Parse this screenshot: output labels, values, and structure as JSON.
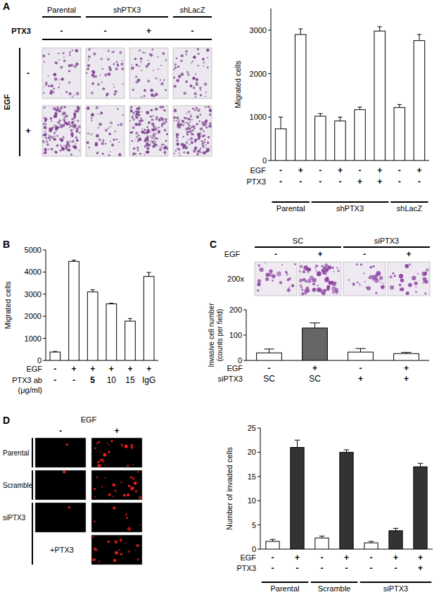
{
  "figure": {
    "panel_labels": [
      "A",
      "B",
      "C",
      "D"
    ],
    "image_A": {
      "col_headers": [
        "Parental",
        "shPTX3",
        "shLacZ"
      ],
      "treatment_label": "PTX3",
      "treatment_values": [
        "-",
        "-",
        "+",
        "-"
      ],
      "row_label": "EGF",
      "row_signs": [
        "-",
        "+"
      ]
    },
    "image_C": {
      "col_headers": [
        "SC",
        "siPTX3"
      ],
      "row_label": "EGF",
      "egf_values": [
        "-",
        "+",
        "-",
        "+"
      ],
      "magnification": "200x"
    },
    "image_D": {
      "col_label": "EGF",
      "col_signs": [
        "-",
        "+"
      ],
      "row_labels": [
        "Parental",
        "Scramble",
        "siPTX3"
      ],
      "rescue_label": "+PTX3"
    }
  },
  "chart_data": [
    {
      "type": "bar",
      "y_label": "Migrated cells",
      "categories": [
        null,
        null,
        null,
        null,
        null,
        null,
        null,
        null
      ],
      "values": [
        730,
        2900,
        1020,
        910,
        1170,
        2980,
        1220,
        2760
      ],
      "errors": [
        270,
        130,
        60,
        90,
        60,
        100,
        70,
        140
      ],
      "color": "#ffffff",
      "ylim": [
        0,
        3500
      ],
      "yticks": [
        0,
        1000,
        2000,
        3000
      ],
      "rows": [
        {
          "label": "EGF",
          "values": [
            "-",
            "+",
            "-",
            "+",
            "-",
            "+",
            "-",
            "+"
          ]
        },
        {
          "label": "PTX3",
          "values": [
            "-",
            "-",
            "-",
            "-",
            "+",
            "+",
            "-",
            "-"
          ]
        }
      ],
      "groups": [
        {
          "label": "Parental",
          "from": 0,
          "to": 1
        },
        {
          "label": "shPTX3",
          "from": 2,
          "to": 5
        },
        {
          "label": "shLacZ",
          "from": 6,
          "to": 7
        }
      ]
    },
    {
      "type": "bar",
      "y_label": "Migrated cells",
      "categories": [
        null,
        null,
        null,
        null,
        null,
        null
      ],
      "values": [
        380,
        4480,
        3100,
        2560,
        1780,
        3800
      ],
      "errors": [
        30,
        60,
        100,
        30,
        120,
        180
      ],
      "color": "#ffffff",
      "ylim": [
        0,
        5000
      ],
      "yticks": [
        0,
        1000,
        2000,
        3000,
        4000,
        5000
      ],
      "rows": [
        {
          "label": "EGF",
          "values": [
            "-",
            "+",
            "+",
            "+",
            "+",
            "+"
          ]
        },
        {
          "label": "PTX3 ab",
          "unit": "(μg/ml)",
          "values": [
            "-",
            "-",
            "5",
            "10",
            "15",
            "IgG"
          ]
        }
      ]
    },
    {
      "type": "bar",
      "y_label": [
        "Invasive cell number",
        "(counts per field)"
      ],
      "categories": [
        null,
        null,
        null,
        null
      ],
      "values": [
        30,
        128,
        33,
        27
      ],
      "errors": [
        15,
        20,
        14,
        5
      ],
      "colors": [
        "#ffffff",
        "#666666",
        "#ffffff",
        "#ffffff"
      ],
      "ylim": [
        0,
        200
      ],
      "yticks": [
        0,
        100,
        200
      ],
      "rows": [
        {
          "label": "EGF",
          "values": [
            "-",
            "+",
            "-",
            "+"
          ]
        },
        {
          "label": "siPTX3",
          "values": [
            "SC",
            "SC",
            "+",
            "+"
          ]
        }
      ]
    },
    {
      "type": "bar",
      "y_label": "Number of invaded cells",
      "categories": [
        null,
        null,
        null,
        null,
        null,
        null,
        null
      ],
      "values": [
        1.6,
        21,
        2.3,
        20,
        1.3,
        3.8,
        17
      ],
      "errors": [
        0.4,
        1.5,
        0.4,
        0.5,
        0.3,
        0.5,
        0.7
      ],
      "colors": [
        "#ffffff",
        "#333333",
        "#ffffff",
        "#333333",
        "#ffffff",
        "#333333",
        "#333333"
      ],
      "ylim": [
        0,
        25
      ],
      "yticks": [
        0,
        5,
        10,
        15,
        20,
        25
      ],
      "rows": [
        {
          "label": "EGF",
          "values": [
            "-",
            "+",
            "-",
            "+",
            "-",
            "+",
            "+"
          ]
        },
        {
          "label": "PTX3",
          "values": [
            "-",
            "-",
            "-",
            "-",
            "-",
            "-",
            "+"
          ]
        }
      ],
      "groups": [
        {
          "label": "Parental",
          "from": 0,
          "to": 1
        },
        {
          "label": "Scramble",
          "from": 2,
          "to": 3
        },
        {
          "label": "siPTX3",
          "from": 4,
          "to": 6
        }
      ]
    }
  ]
}
